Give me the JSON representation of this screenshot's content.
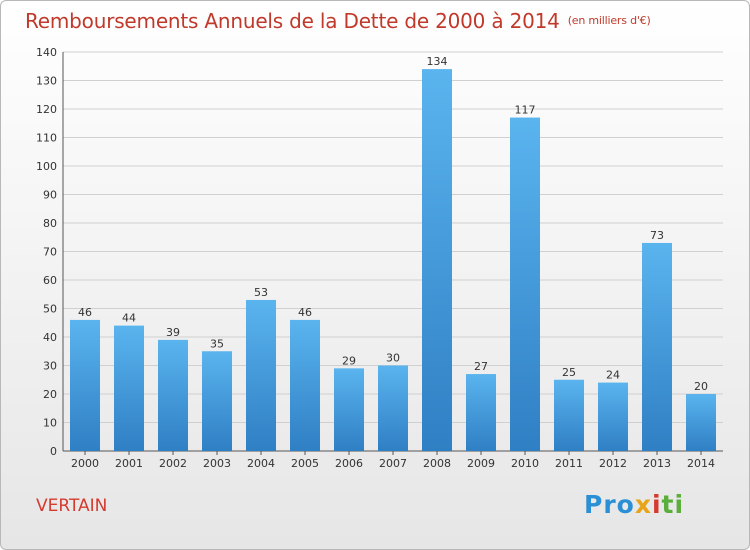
{
  "title": "Remboursements Annuels de la Dette de 2000 à 2014",
  "unit": "(en milliers d'€)",
  "commune": "VERTAIN",
  "logo": {
    "p1": "Pro",
    "p2": "x",
    "p3": "i",
    "p4": "ti"
  },
  "colors": {
    "bar_top": "#5ab4ee",
    "bar_bottom": "#2f7fc4",
    "title": "#c0392b",
    "grid": "#d0d0d0"
  },
  "chart_data": {
    "type": "bar",
    "title": "Remboursements Annuels de la Dette de 2000 à 2014",
    "xlabel": "",
    "ylabel": "",
    "categories": [
      "2000",
      "2001",
      "2002",
      "2003",
      "2004",
      "2005",
      "2006",
      "2007",
      "2008",
      "2009",
      "2010",
      "2011",
      "2012",
      "2013",
      "2014"
    ],
    "values": [
      46,
      44,
      39,
      35,
      53,
      46,
      29,
      30,
      134,
      27,
      117,
      25,
      24,
      73,
      20
    ],
    "ylim": [
      0,
      140
    ],
    "yticks": [
      0,
      10,
      20,
      30,
      40,
      50,
      60,
      70,
      80,
      90,
      100,
      110,
      120,
      130,
      140
    ],
    "grid": true
  }
}
